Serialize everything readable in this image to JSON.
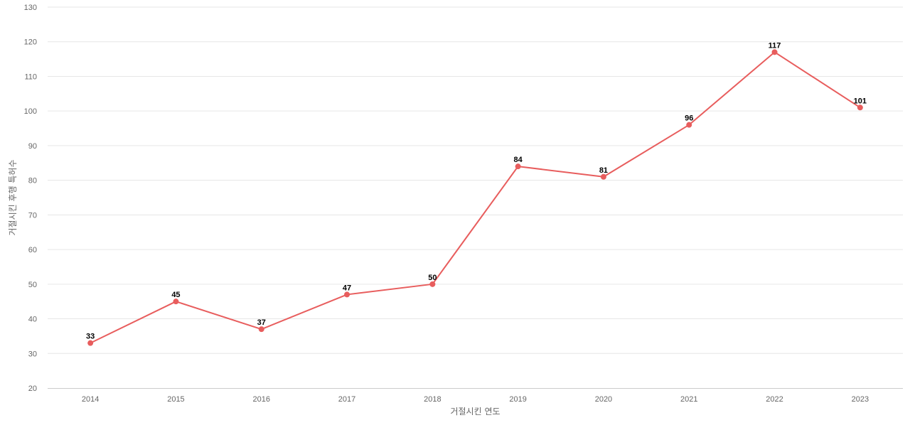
{
  "chart_data": {
    "type": "line",
    "title": "",
    "xlabel": "거절시킨 연도",
    "ylabel": "거절시킨 후행 특허수",
    "categories": [
      "2014",
      "2015",
      "2016",
      "2017",
      "2018",
      "2019",
      "2020",
      "2021",
      "2022",
      "2023"
    ],
    "series": [
      {
        "values": [
          33,
          45,
          37,
          47,
          50,
          84,
          81,
          96,
          117,
          101
        ],
        "color": "#e85d5d"
      }
    ],
    "ylim": [
      20,
      130
    ],
    "yticks": [
      20,
      30,
      40,
      50,
      60,
      70,
      80,
      90,
      100,
      110,
      120,
      130
    ],
    "grid": true,
    "legend": "none",
    "data_labels": true
  }
}
